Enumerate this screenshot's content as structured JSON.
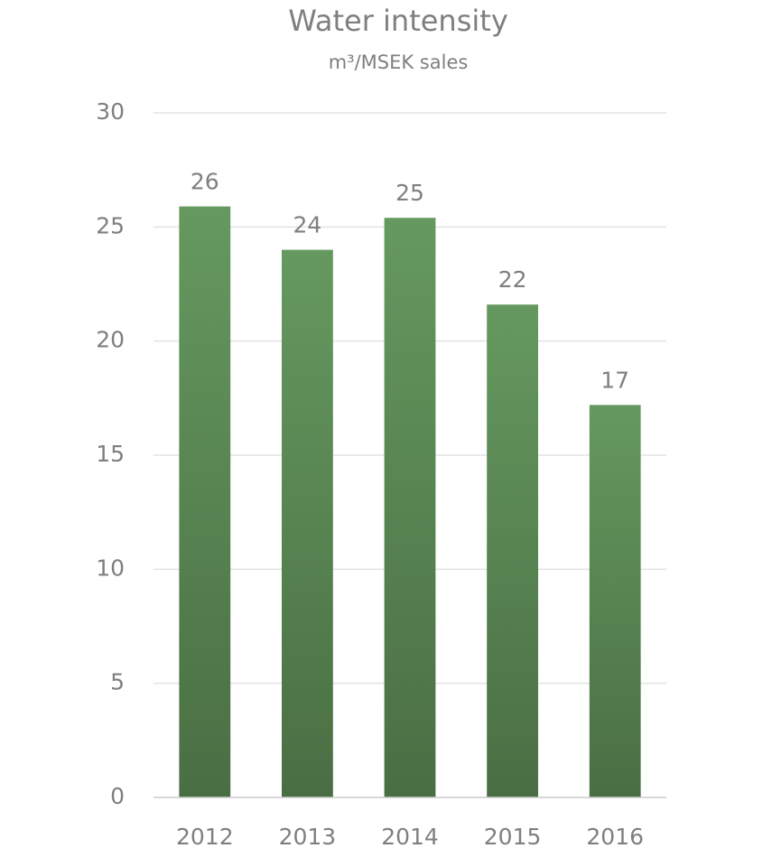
{
  "chart_data": {
    "type": "bar",
    "title": "Water intensity",
    "subtitle": "m³/MSEK sales",
    "categories": [
      "2012",
      "2013",
      "2014",
      "2015",
      "2016"
    ],
    "values": [
      25.9,
      24.0,
      25.4,
      21.6,
      17.2
    ],
    "value_labels": [
      "26",
      "24",
      "25",
      "22",
      "17"
    ],
    "color": "#5a8a52",
    "ylim": [
      0,
      30
    ],
    "yticks": [
      0,
      5,
      10,
      15,
      20,
      25,
      30
    ],
    "grid": true
  }
}
